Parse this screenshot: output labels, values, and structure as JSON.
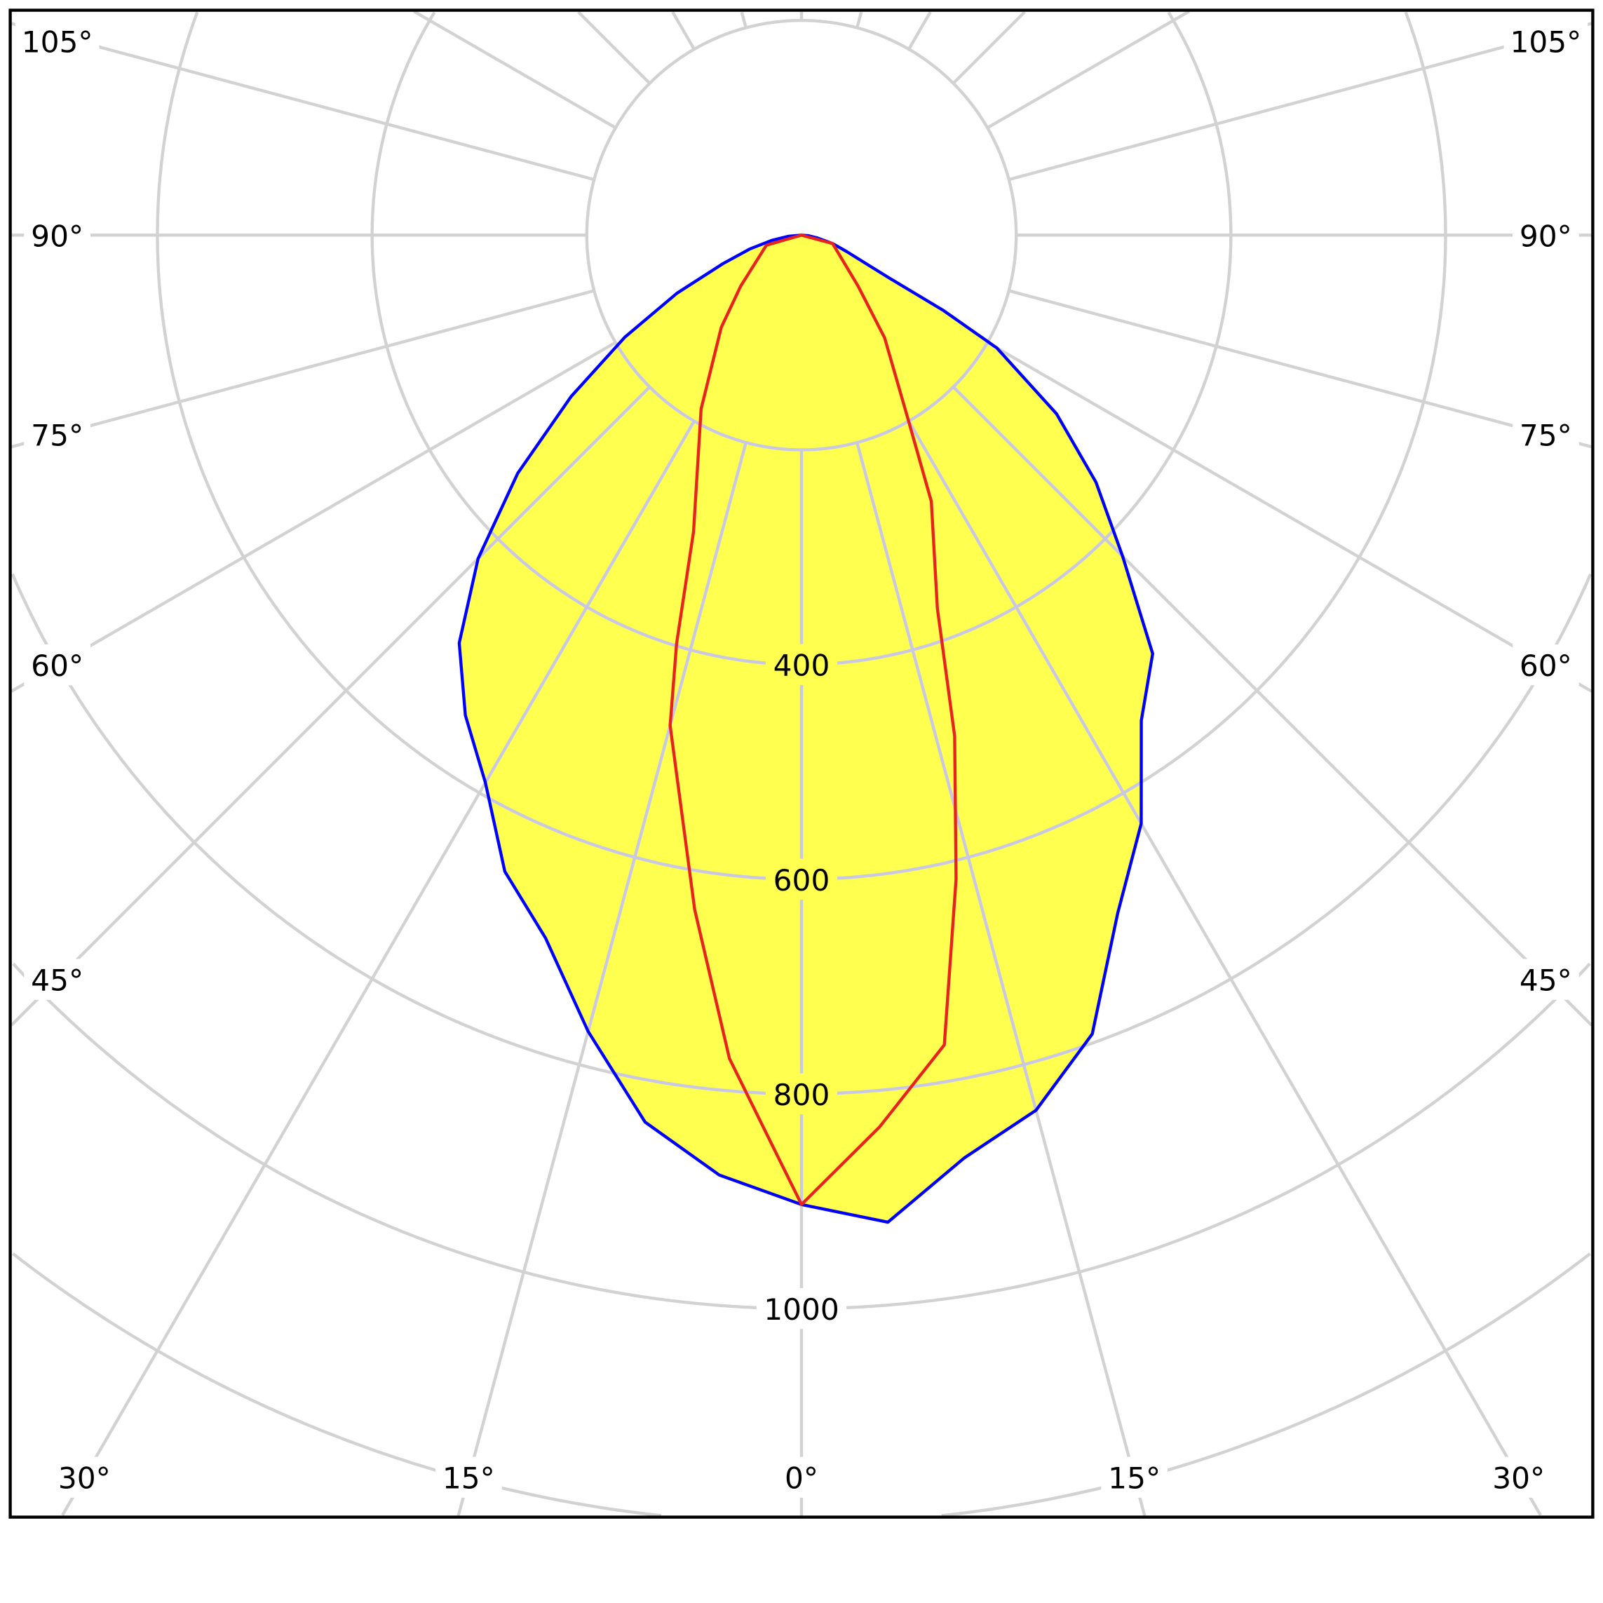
{
  "chart_data": {
    "type": "polar",
    "angle_unit": "degrees",
    "zero_direction": "down",
    "radial_range": [
      0,
      1400
    ],
    "radial_ticks": [
      200,
      400,
      600,
      800,
      1000,
      1200,
      1400
    ],
    "radial_tick_labels": [
      "400",
      "600",
      "800",
      "1000"
    ],
    "radial_tick_label_values": [
      400,
      600,
      800,
      1000
    ],
    "angle_ticks": [
      0,
      15,
      30,
      45,
      60,
      75,
      90,
      105,
      120,
      135,
      150,
      165,
      180
    ],
    "angle_labels": {
      "left": [
        {
          "value": 105,
          "text": "105°"
        },
        {
          "value": 90,
          "text": "90°"
        },
        {
          "value": 75,
          "text": "75°"
        },
        {
          "value": 60,
          "text": "60°"
        },
        {
          "value": 45,
          "text": "45°"
        }
      ],
      "right": [
        {
          "value": 105,
          "text": "105°"
        },
        {
          "value": 90,
          "text": "90°"
        },
        {
          "value": 75,
          "text": "75°"
        },
        {
          "value": 60,
          "text": "60°"
        },
        {
          "value": 45,
          "text": "45°"
        }
      ],
      "bottom": [
        {
          "value": -30,
          "text": "30°"
        },
        {
          "value": -15,
          "text": "15°"
        },
        {
          "value": 0,
          "text": "0°"
        },
        {
          "value": 15,
          "text": "15°"
        },
        {
          "value": 30,
          "text": "30°"
        }
      ]
    },
    "grid": true,
    "legend": "none",
    "series": [
      {
        "color": "#0000ff",
        "fill": "#ffff50",
        "right": {
          "gamma": [
            0,
            5,
            10,
            15,
            20,
            25,
            30,
            35,
            40,
            45,
            50,
            55,
            60,
            62,
            64,
            70,
            75,
            80,
            85,
            90
          ],
          "intensity": [
            903,
            923,
            873,
            844,
            792,
            697,
            633,
            552,
            509,
            423,
            358,
            290,
            210,
            150,
            90,
            45,
            30,
            15,
            6,
            0
          ]
        },
        "left": {
          "gamma": [
            0,
            5,
            10,
            15,
            20,
            25,
            30,
            35,
            40,
            45,
            50,
            55,
            60,
            65,
            70,
            75,
            80,
            85,
            90
          ],
          "intensity": [
            903,
            879,
            839,
            768,
            697,
            654,
            589,
            546,
            496,
            426,
            345,
            262,
            190,
            128,
            78,
            50,
            28,
            12,
            0
          ]
        }
      },
      {
        "color": "#e8231e",
        "right": {
          "gamma": [
            0,
            5,
            10,
            13.5,
            17,
            20,
            26,
            30,
            39,
            48,
            75,
            90
          ],
          "intensity": [
            903,
            834,
            766,
            617,
            488,
            370,
            276,
            199,
            123,
            71,
            30,
            0
          ]
        },
        "left": {
          "gamma": [
            0,
            5,
            9,
            15,
            17,
            20,
            30,
            41,
            50,
            74,
            90
          ],
          "intensity": [
            903,
            770,
            636,
            473,
            398,
            294,
            187,
            114,
            74,
            34,
            0
          ]
        }
      }
    ],
    "colors": {
      "grid": "#d2d2d2",
      "grid_over_fill": "#c8c8e6",
      "frame": "#000000"
    }
  }
}
